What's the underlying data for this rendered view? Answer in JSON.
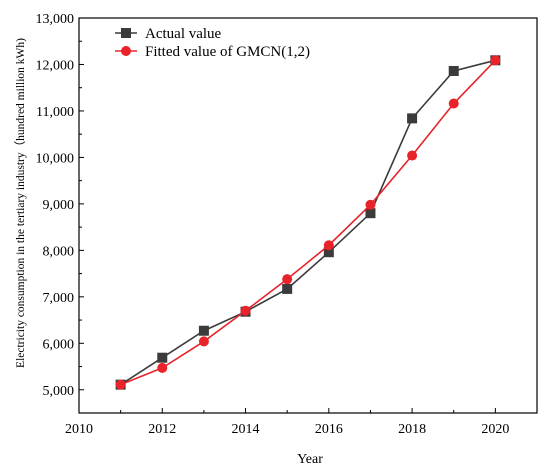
{
  "chart_data": {
    "type": "line",
    "x": [
      2011,
      2012,
      2013,
      2014,
      2015,
      2016,
      2017,
      2018,
      2019,
      2020
    ],
    "series": [
      {
        "name": "Actual value",
        "values": [
          5110,
          5690,
          6270,
          6680,
          7170,
          7960,
          8800,
          10840,
          11860,
          12090
        ],
        "color": "#3b3b3b",
        "marker": "square"
      },
      {
        "name": "Fitted value of GMCN(1,2)",
        "values": [
          5110,
          5470,
          6040,
          6700,
          7380,
          8110,
          8980,
          10040,
          11160,
          12090
        ],
        "color": "#e8232a",
        "marker": "circle"
      }
    ],
    "xlabel": "Year",
    "ylabel": "Electricity consumption in the tertiary industry（hundred million kWh)",
    "xlim": [
      2010,
      2021
    ],
    "ylim": [
      4500,
      13000
    ],
    "x_ticks": [
      2010,
      2012,
      2014,
      2016,
      2018,
      2020
    ],
    "x_tick_labels": [
      "2010",
      "2012",
      "2014",
      "2016",
      "2018",
      "2020"
    ],
    "y_ticks": [
      5000,
      6000,
      7000,
      8000,
      9000,
      10000,
      11000,
      12000,
      13000
    ],
    "y_tick_labels": [
      "5,000",
      "6,000",
      "7,000",
      "8,000",
      "9,000",
      "10,000",
      "11,000",
      "12,000",
      "13,000"
    ],
    "legend_position": "top-left",
    "grid": false
  }
}
